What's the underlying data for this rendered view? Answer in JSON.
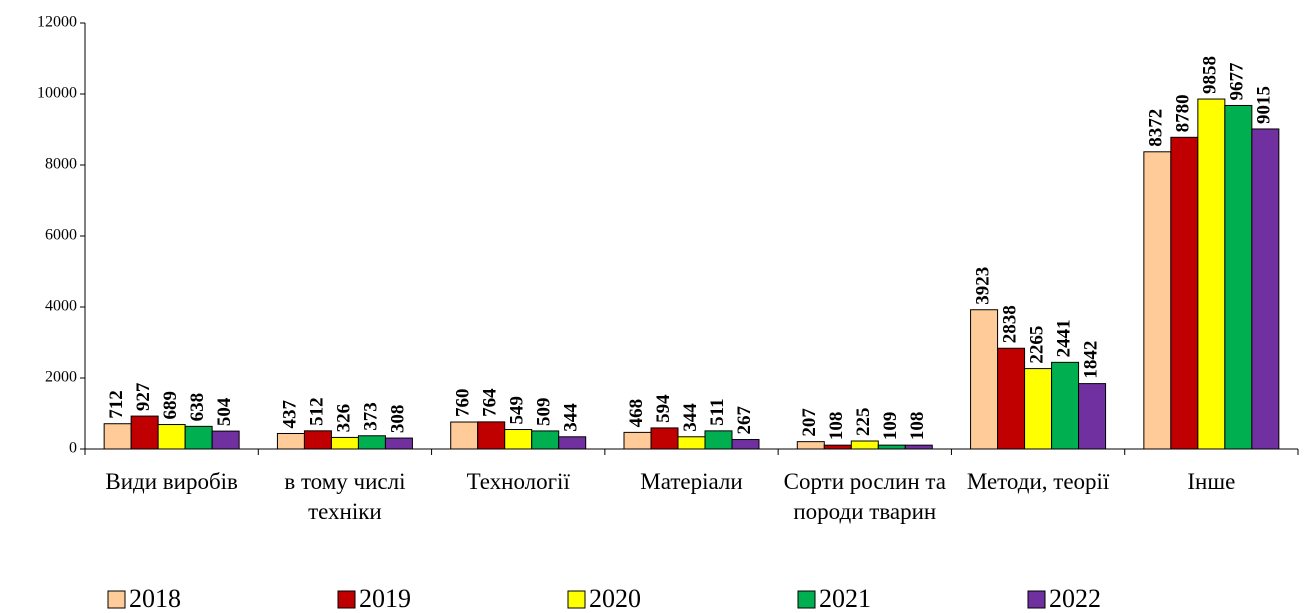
{
  "chart_data": {
    "type": "bar",
    "categories": [
      "Види виробів",
      "в тому числі техніки",
      "Технології",
      "Матеріали",
      "Сорти рослин та породи тварин",
      "Методи, теорії",
      "Інше"
    ],
    "series": [
      {
        "name": "2018",
        "color": "#FFCC99",
        "values": [
          712,
          437,
          760,
          468,
          207,
          3923,
          8372
        ]
      },
      {
        "name": "2019",
        "color": "#C00000",
        "values": [
          927,
          512,
          764,
          594,
          108,
          2838,
          8780
        ]
      },
      {
        "name": "2020",
        "color": "#FFFF00",
        "values": [
          689,
          326,
          549,
          344,
          225,
          2265,
          9858
        ]
      },
      {
        "name": "2021",
        "color": "#00B050",
        "values": [
          638,
          373,
          509,
          511,
          109,
          2441,
          9677
        ]
      },
      {
        "name": "2022",
        "color": "#7030A0",
        "values": [
          504,
          308,
          344,
          267,
          108,
          1842,
          9015
        ]
      }
    ],
    "ylim": [
      0,
      12000
    ],
    "yticks": [
      0,
      2000,
      4000,
      6000,
      8000,
      10000,
      12000
    ],
    "legend": "bottom"
  }
}
